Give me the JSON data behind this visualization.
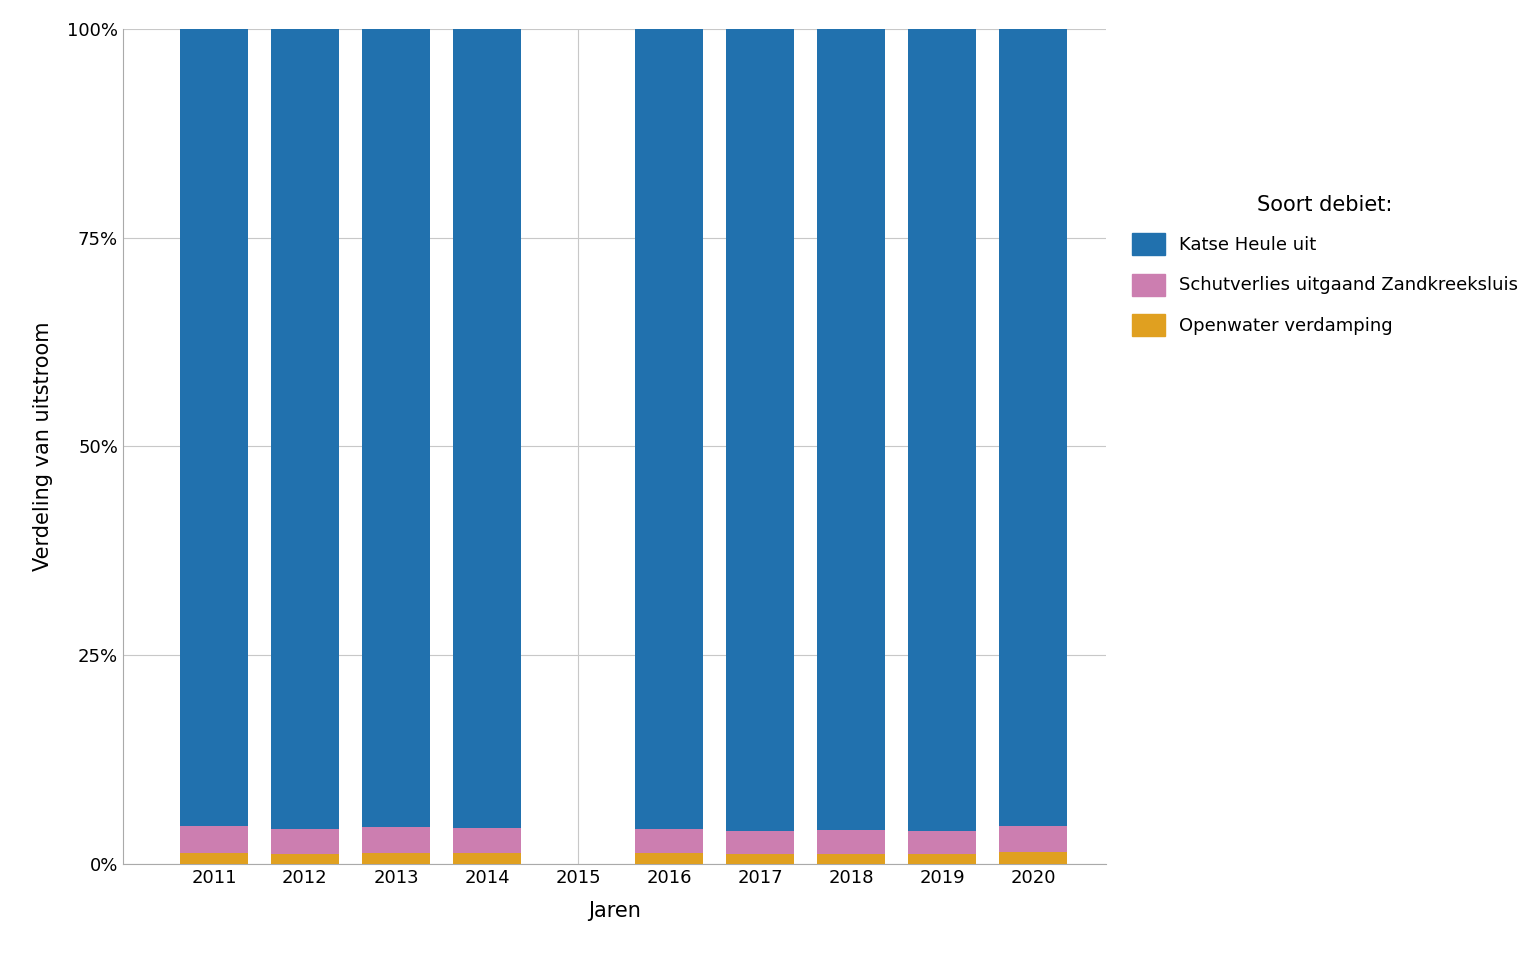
{
  "years": [
    2011,
    2012,
    2013,
    2014,
    2016,
    2017,
    2018,
    2019,
    2020
  ],
  "all_xticks": [
    2011,
    2012,
    2013,
    2014,
    2015,
    2016,
    2017,
    2018,
    2019,
    2020
  ],
  "katse_heule": [
    95.5,
    95.8,
    95.6,
    95.7,
    95.8,
    96.0,
    95.9,
    96.1,
    95.5
  ],
  "schutverlies": [
    3.2,
    3.0,
    3.1,
    3.0,
    2.9,
    2.8,
    2.9,
    2.7,
    3.1
  ],
  "openwater": [
    1.3,
    1.2,
    1.3,
    1.3,
    1.3,
    1.2,
    1.2,
    1.2,
    1.4
  ],
  "color_katse": "#2171ae",
  "color_schutverlies": "#cc7eb0",
  "color_openwater": "#e0a020",
  "xlabel": "Jaren",
  "ylabel": "Verdeling van uitstroom",
  "legend_title": "Soort debiet:",
  "legend_labels": [
    "Katse Heule uit",
    "Schutverlies uitgaand Zandkreeksluis",
    "Openwater verdamping"
  ],
  "yticks": [
    0,
    25,
    50,
    75,
    100
  ],
  "ytick_labels": [
    "0%",
    "25%",
    "50%",
    "75%",
    "100%"
  ],
  "background_color": "#ffffff",
  "plot_background": "#ffffff",
  "grid_color": "#c8c8c8",
  "bar_width": 0.75,
  "xlim": [
    2010.0,
    2020.8
  ]
}
